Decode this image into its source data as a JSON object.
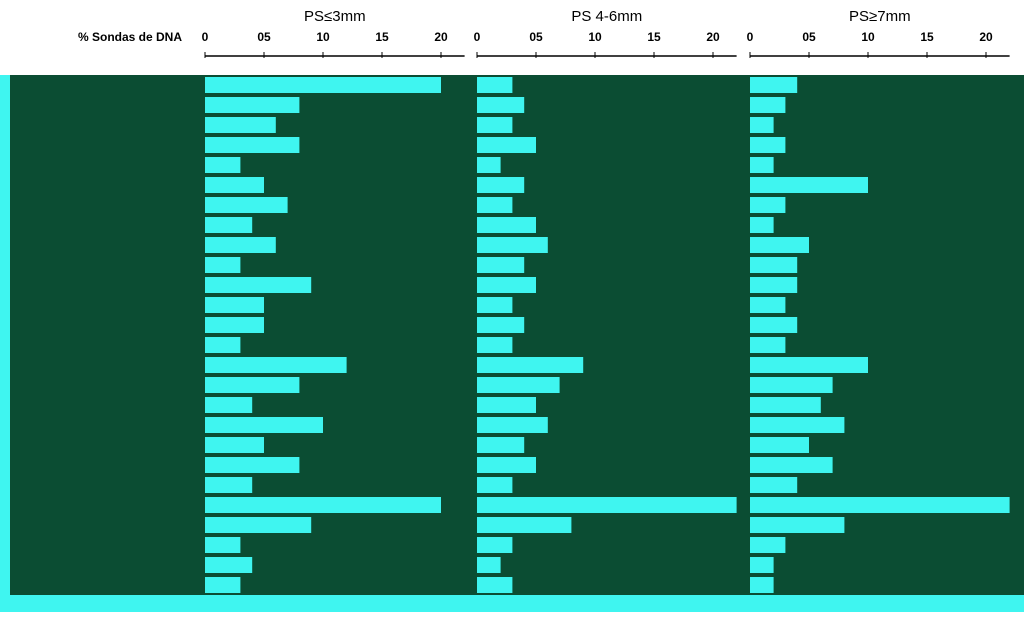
{
  "axis_label": "% Sondas de DNA",
  "chart_data": [
    {
      "type": "bar",
      "orientation": "horizontal",
      "title": "PS≤3mm",
      "color": "#3ff5f0",
      "values": [
        20,
        8,
        6,
        8,
        3,
        5,
        7,
        4,
        6,
        3,
        9,
        5,
        5,
        3,
        12,
        8,
        4,
        10,
        5,
        8,
        4,
        20,
        9,
        3,
        4,
        3
      ],
      "xlim": [
        0,
        22
      ],
      "xticks": [
        0,
        {
          "value": 5,
          "label": "05"
        },
        10,
        15,
        20
      ]
    },
    {
      "type": "bar",
      "orientation": "horizontal",
      "title": "PS 4-6mm",
      "color": "#3ff5f0",
      "values": [
        3,
        4,
        3,
        5,
        2,
        4,
        3,
        5,
        6,
        4,
        5,
        3,
        4,
        3,
        9,
        7,
        5,
        6,
        4,
        5,
        3,
        22,
        8,
        3,
        2,
        3
      ],
      "xlim": [
        0,
        22
      ],
      "xticks": [
        0,
        {
          "value": 5,
          "label": "05"
        },
        10,
        15,
        20
      ]
    },
    {
      "type": "bar",
      "orientation": "horizontal",
      "title": "PS≥7mm",
      "color": "#3ff5f0",
      "values": [
        4,
        3,
        2,
        3,
        2,
        10,
        3,
        2,
        5,
        4,
        4,
        3,
        4,
        3,
        10,
        7,
        6,
        8,
        5,
        7,
        4,
        22,
        8,
        3,
        2,
        2
      ],
      "xlim": [
        0,
        22
      ],
      "xticks": [
        0,
        {
          "value": 5,
          "label": "05"
        },
        10,
        15,
        20
      ]
    }
  ]
}
